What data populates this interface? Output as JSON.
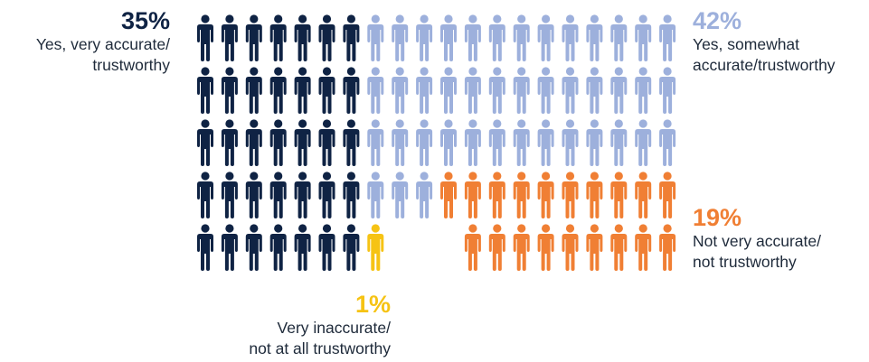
{
  "chart_data": {
    "type": "pictograph",
    "unit": "person",
    "rows": 5,
    "columns": 20,
    "categories": [
      {
        "key": "very",
        "value": 35,
        "percent_label": "35%",
        "label_lines": [
          "Yes, very accurate/",
          "trustworthy"
        ],
        "color": "#0f2344"
      },
      {
        "key": "somewhat",
        "value": 42,
        "percent_label": "42%",
        "label_lines": [
          "Yes, somewhat",
          "accurate/trustworthy"
        ],
        "color": "#9db0dc"
      },
      {
        "key": "inacc",
        "value": 1,
        "percent_label": "1%",
        "label_lines": [
          "Very inaccurate/",
          "not at all trustworthy"
        ],
        "color": "#f6c314"
      },
      {
        "key": "notvery",
        "value": 19,
        "percent_label": "19%",
        "label_lines": [
          "Not very accurate/",
          "not trustworthy"
        ],
        "color": "#f07f34"
      }
    ]
  }
}
